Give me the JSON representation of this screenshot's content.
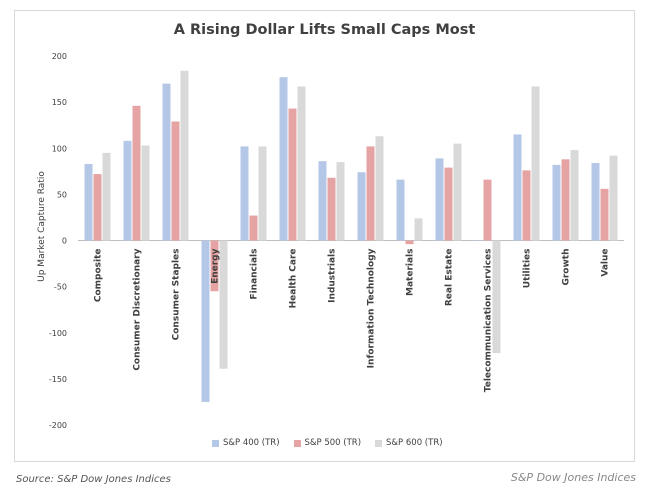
{
  "source": "Source: S&P Dow Jones Indices",
  "brand": "S&P Dow Jones Indices",
  "colors": {
    "s400": "#b4c7e7",
    "s500": "#e6a3a3",
    "s600": "#d9d9d9",
    "grid": "#d9d9d9",
    "text": "#404040"
  },
  "chart_data": {
    "type": "bar",
    "title": "A Rising Dollar Lifts Small Caps Most",
    "ylabel": "Up Market Capture Ratio",
    "xlabel": "",
    "ylim": [
      -200,
      200
    ],
    "yticks": [
      200,
      150,
      100,
      50,
      0,
      -50,
      -100,
      -150,
      -200
    ],
    "grid": true,
    "legend_position": "bottom",
    "categories": [
      "Composite",
      "Consumer Discretionary",
      "Consumer Staples",
      "Energy",
      "Financials",
      "Health Care",
      "Industrials",
      "Information Technology",
      "Materials",
      "Real Estate",
      "Telecommunication Services",
      "Utilities",
      "Growth",
      "Value"
    ],
    "series": [
      {
        "name": "S&P 400 (TR)",
        "values": [
          83,
          108,
          170,
          -175,
          102,
          177,
          86,
          74,
          66,
          89,
          0,
          115,
          82,
          84
        ]
      },
      {
        "name": "S&P 500 (TR)",
        "values": [
          72,
          146,
          129,
          -55,
          27,
          143,
          68,
          102,
          -4,
          79,
          66,
          76,
          88,
          56
        ]
      },
      {
        "name": "S&P 600 (TR)",
        "values": [
          95,
          103,
          184,
          -139,
          102,
          167,
          85,
          113,
          24,
          105,
          -122,
          167,
          98,
          92
        ]
      }
    ]
  }
}
